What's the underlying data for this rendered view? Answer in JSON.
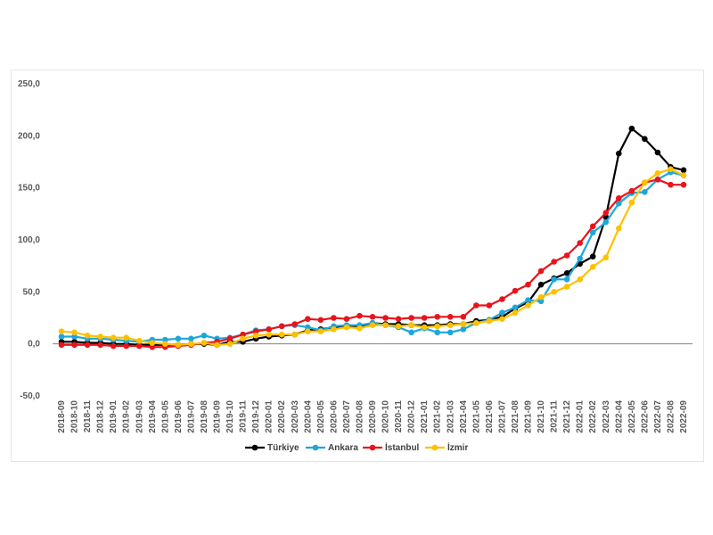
{
  "chart_data": {
    "type": "line",
    "title": "",
    "xlabel": "",
    "ylabel": "",
    "ylim": [
      -50,
      250
    ],
    "yticks": [
      -50,
      0,
      50,
      100,
      150,
      200,
      250
    ],
    "ytick_labels": [
      "-50,0",
      "0,0",
      "50,0",
      "100,0",
      "150,0",
      "200,0",
      "250,0"
    ],
    "grid": false,
    "legend_position": "bottom",
    "x": [
      "2018-09",
      "2018-10",
      "2018-11",
      "2018-12",
      "2019-01",
      "2019-02",
      "2019-03",
      "2019-04",
      "2019-05",
      "2019-06",
      "2019-07",
      "2019-08",
      "2019-09",
      "2019-10",
      "2019-11",
      "2019-12",
      "2020-01",
      "2020-02",
      "2020-03",
      "2020-04",
      "2020-05",
      "2020-06",
      "2020-07",
      "2020-08",
      "2020-09",
      "2020-10",
      "2020-11",
      "2020-12",
      "2021-01",
      "2021-02",
      "2021-03",
      "2021-04",
      "2021-05",
      "2021-06",
      "2021-07",
      "2021-08",
      "2021-09",
      "2021-10",
      "2021-11",
      "2021-12",
      "2022-01",
      "2022-02",
      "2022-03",
      "2022-04",
      "2022-05",
      "2022-06",
      "2022-07",
      "2022-08",
      "2022-09"
    ],
    "series": [
      {
        "name": "Türkiye",
        "color": "#000000",
        "values": [
          2,
          2,
          1,
          1,
          0,
          0,
          -1,
          -1,
          -1,
          -1,
          0,
          0,
          -1,
          2,
          2,
          5,
          7,
          8,
          9,
          13,
          14,
          16,
          17,
          17,
          20,
          19,
          19,
          18,
          18,
          18,
          19,
          19,
          22,
          23,
          26,
          34,
          40,
          57,
          63,
          68,
          77,
          84,
          122,
          183,
          207,
          197,
          184,
          170,
          167
        ]
      },
      {
        "name": "Ankara",
        "color": "#1ea6dc",
        "values": [
          7,
          7,
          5,
          5,
          4,
          3,
          2,
          4,
          4,
          5,
          5,
          8,
          5,
          6,
          9,
          13,
          14,
          17,
          18,
          16,
          13,
          17,
          18,
          18,
          20,
          18,
          16,
          11,
          15,
          11,
          11,
          14,
          20,
          23,
          30,
          35,
          42,
          41,
          62,
          62,
          82,
          107,
          117,
          135,
          145,
          146,
          158,
          165,
          162
        ]
      },
      {
        "name": "İstanbul",
        "color": "#e8141b",
        "values": [
          -1,
          -1,
          -1,
          -1,
          -2,
          -2,
          -2,
          -3,
          -3,
          -2,
          -1,
          1,
          2,
          5,
          9,
          12,
          14,
          17,
          19,
          24,
          23,
          25,
          24,
          27,
          26,
          25,
          24,
          25,
          25,
          26,
          26,
          26,
          37,
          37,
          43,
          51,
          57,
          70,
          79,
          85,
          97,
          113,
          126,
          140,
          147,
          155,
          158,
          153,
          153
        ]
      },
      {
        "name": "İzmir",
        "color": "#ffc000",
        "values": [
          12,
          11,
          8,
          7,
          6,
          6,
          3,
          1,
          0,
          -1,
          0,
          1,
          -1,
          0,
          5,
          8,
          9,
          9,
          9,
          12,
          12,
          14,
          16,
          15,
          18,
          18,
          17,
          18,
          16,
          17,
          18,
          19,
          20,
          22,
          24,
          30,
          37,
          45,
          50,
          55,
          62,
          74,
          83,
          111,
          136,
          155,
          164,
          168,
          162
        ]
      }
    ]
  }
}
